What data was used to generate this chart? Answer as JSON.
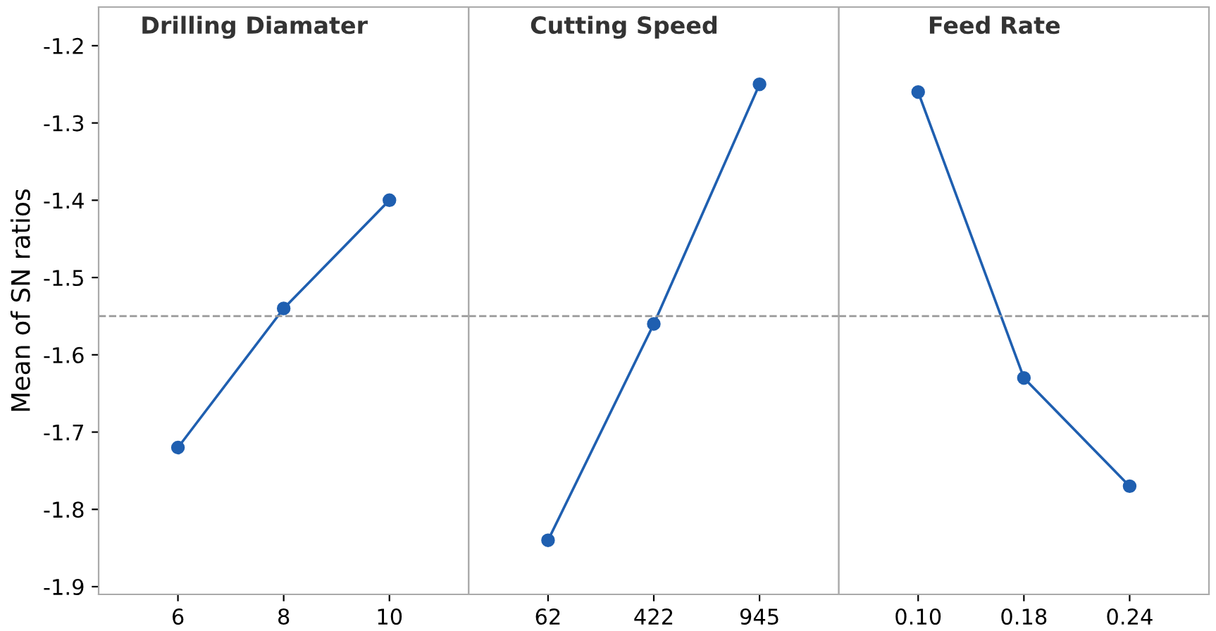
{
  "chart_data": [
    {
      "type": "line",
      "title": "Drilling Diamater",
      "ylabel": "Mean of SN ratios",
      "categories": [
        "6",
        "8",
        "10"
      ],
      "series": [
        {
          "color": "#1f5fb0",
          "values": [
            -1.72,
            -1.54,
            -1.4
          ]
        }
      ],
      "ylim": [
        -1.91,
        -1.15
      ],
      "yticks": [
        -1.9,
        -1.8,
        -1.7,
        -1.6,
        -1.5,
        -1.4,
        -1.3,
        -1.2
      ],
      "marker": "circle",
      "line_style": "solid",
      "ref_lines": [
        {
          "axis": "y",
          "value": -1.55,
          "color": "#999999",
          "line_style": "dashed"
        }
      ],
      "grid": false
    },
    {
      "type": "line",
      "title": "Cutting Speed",
      "categories": [
        "62",
        "422",
        "945"
      ],
      "series": [
        {
          "color": "#1f5fb0",
          "values": [
            -1.84,
            -1.56,
            -1.25
          ]
        }
      ],
      "ylim": [
        -1.91,
        -1.15
      ],
      "tick_labels": "x",
      "marker": "circle",
      "line_style": "solid",
      "ref_lines": [
        {
          "axis": "y",
          "value": -1.55,
          "color": "#999999",
          "line_style": "dashed"
        }
      ],
      "grid": false
    },
    {
      "type": "line",
      "title": "Feed Rate",
      "categories": [
        "0.10",
        "0.18",
        "0.24"
      ],
      "series": [
        {
          "color": "#1f5fb0",
          "values": [
            -1.26,
            -1.63,
            -1.77
          ]
        }
      ],
      "ylim": [
        -1.91,
        -1.15
      ],
      "tick_labels": "x",
      "marker": "circle",
      "line_style": "solid",
      "ref_lines": [
        {
          "axis": "y",
          "value": -1.55,
          "color": "#999999",
          "line_style": "dashed"
        }
      ],
      "grid": false
    }
  ]
}
